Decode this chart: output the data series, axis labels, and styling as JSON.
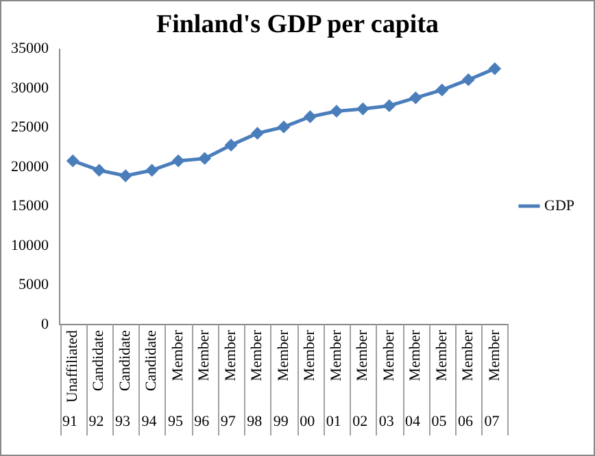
{
  "chart_data": {
    "type": "line",
    "title": "Finland's GDP per capita",
    "categories": [
      "Unaffiliated 91",
      "Candidate 92",
      "Candidate 93",
      "Candidate 94",
      "Member 95",
      "Member 96",
      "Member 97",
      "Member 98",
      "Member 99",
      "Member 00",
      "Member 01",
      "Member 02",
      "Member 03",
      "Member 04",
      "Member 05",
      "Member 06",
      "Member 07"
    ],
    "series": [
      {
        "name": "GDP",
        "color": "#4a7ebb",
        "values": [
          20800,
          19600,
          18900,
          19600,
          20800,
          21100,
          22800,
          24300,
          25100,
          26400,
          27100,
          27400,
          27800,
          28800,
          29800,
          31100,
          32500
        ]
      }
    ],
    "ylim": [
      0,
      35000
    ],
    "yticks": [
      0,
      5000,
      10000,
      15000,
      20000,
      25000,
      30000,
      35000
    ],
    "grid": false,
    "legend": "right",
    "marker": "diamond",
    "line_style": "solid"
  }
}
